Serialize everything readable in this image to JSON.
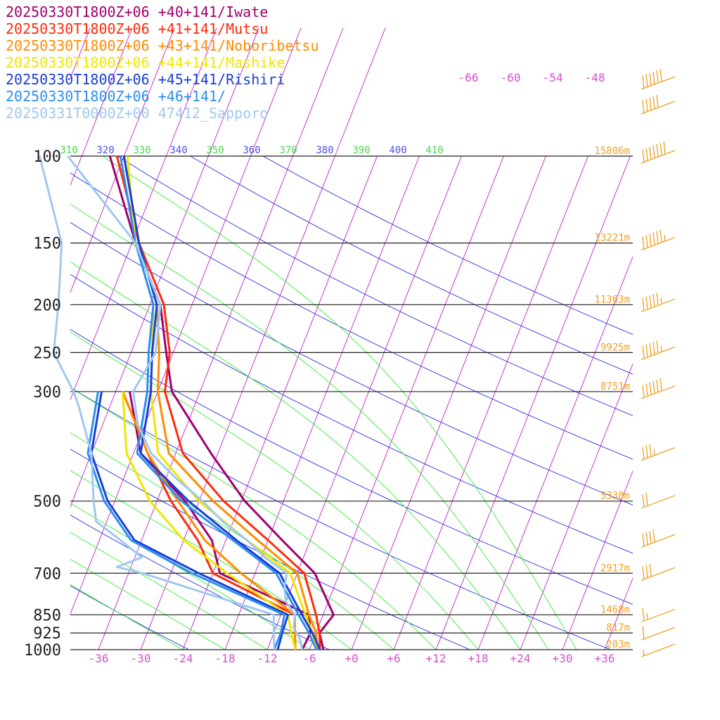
{
  "legend": [
    {
      "text": "20250330T1800Z+06 +40+141/Iwate",
      "color": "#a0006e"
    },
    {
      "text": "20250330T1800Z+06 +41+141/Mutsu",
      "color": "#ff2a0a"
    },
    {
      "text": "20250330T1800Z+06 +43+141/Noboribetsu",
      "color": "#ff8c00"
    },
    {
      "text": "20250330T1800Z+06 +44+141/Mashike",
      "color": "#f0e600"
    },
    {
      "text": "20250330T1800Z+06 +45+141/Rishiri",
      "color": "#1a3fd6"
    },
    {
      "text": "20250330T1800Z+06 +46+141/",
      "color": "#2a8ff0"
    },
    {
      "text": "20250331T0000Z+00 47412_Sapporo",
      "color": "#a0c8f0"
    }
  ],
  "chart_data": {
    "type": "line",
    "title": "",
    "xlabel": "",
    "ylabel": "",
    "pressure_levels": [
      {
        "p": 100,
        "label": "100",
        "height": "15806m"
      },
      {
        "p": 150,
        "label": "150",
        "height": "13221m"
      },
      {
        "p": 200,
        "label": "200",
        "height": "11363m"
      },
      {
        "p": 250,
        "label": "250",
        "height": "9925m"
      },
      {
        "p": 300,
        "label": "300",
        "height": "8751m"
      },
      {
        "p": 500,
        "label": "500",
        "height": "5338m"
      },
      {
        "p": 700,
        "label": "700",
        "height": "2917m"
      },
      {
        "p": 850,
        "label": "850",
        "height": "1468m"
      },
      {
        "p": 925,
        "label": "925",
        "height": "817m"
      },
      {
        "p": 1000,
        "label": "1000",
        "height": "203m"
      }
    ],
    "x_ticks": [
      "-36",
      "-30",
      "-24",
      "-18",
      "-12",
      "-6",
      "+0",
      "+6",
      "+12",
      "+18",
      "+24",
      "+30",
      "+36"
    ],
    "x_tick_values": [
      -36,
      -30,
      -24,
      -18,
      -12,
      -6,
      0,
      6,
      12,
      18,
      24,
      30,
      36
    ],
    "upper_temp_labels": [
      "-66",
      "-60",
      "-54",
      "-48"
    ],
    "theta_labels": [
      {
        "text": "310",
        "color": "#4ad84a"
      },
      {
        "text": "320",
        "color": "#5050e0"
      },
      {
        "text": "330",
        "color": "#4ad84a"
      },
      {
        "text": "340",
        "color": "#5050e0"
      },
      {
        "text": "350",
        "color": "#4ad84a"
      },
      {
        "text": "360",
        "color": "#5050e0"
      },
      {
        "text": "370",
        "color": "#4ad84a"
      },
      {
        "text": "380",
        "color": "#5050e0"
      },
      {
        "text": "390",
        "color": "#4ad84a"
      },
      {
        "text": "400",
        "color": "#5050e0"
      },
      {
        "text": "410",
        "color": "#4ad84a"
      }
    ],
    "xlim": [
      -40,
      40
    ],
    "plim": [
      100,
      1000
    ],
    "isotherm_color": "#cc33cc",
    "dry_adiabat_color": "#4040e0",
    "moist_adiabat_color": "#44ee44",
    "barb_color": "#f0a020",
    "series": [
      {
        "name": "20250330T1800Z+06 +40+141/Iwate",
        "color": "#a0006e",
        "temp": [
          [
            1000,
            -4.0
          ],
          [
            925,
            -5.5
          ],
          [
            850,
            -4.5
          ],
          [
            700,
            -9.5
          ],
          [
            600,
            -16.0
          ],
          [
            500,
            -23.5
          ],
          [
            400,
            -31.0
          ],
          [
            300,
            -40.0
          ],
          [
            250,
            -43.0
          ],
          [
            200,
            -46.5
          ],
          [
            150,
            -53.5
          ],
          [
            100,
            -62.0
          ]
        ],
        "dew": [
          [
            1000,
            -7.0
          ],
          [
            925,
            -6.8
          ],
          [
            850,
            -8.0
          ],
          [
            700,
            -23.0
          ],
          [
            600,
            -26.0
          ],
          [
            500,
            -32.0
          ],
          [
            400,
            -41.0
          ],
          [
            300,
            -46.0
          ]
        ]
      },
      {
        "name": "20250330T1800Z+06 +41+141/Mutsu",
        "color": "#ff2a0a",
        "temp": [
          [
            1000,
            -4.5
          ],
          [
            925,
            -5.5
          ],
          [
            850,
            -7.0
          ],
          [
            700,
            -11.0
          ],
          [
            600,
            -18.0
          ],
          [
            500,
            -26.5
          ],
          [
            400,
            -35.0
          ],
          [
            300,
            -41.0
          ],
          [
            250,
            -42.5
          ],
          [
            200,
            -46.0
          ],
          [
            150,
            -53.0
          ],
          [
            100,
            -61.0
          ]
        ],
        "dew": [
          [
            1000,
            -8.0
          ],
          [
            925,
            -9.0
          ],
          [
            850,
            -10.0
          ],
          [
            700,
            -24.0
          ],
          [
            600,
            -28.0
          ],
          [
            500,
            -34.0
          ],
          [
            400,
            -40.0
          ],
          [
            300,
            -47.0
          ]
        ]
      },
      {
        "name": "20250330T1800Z+06 +43+141/Noboribetsu",
        "color": "#ff8c00",
        "temp": [
          [
            1000,
            -4.8
          ],
          [
            925,
            -6.0
          ],
          [
            850,
            -8.0
          ],
          [
            700,
            -12.0
          ],
          [
            600,
            -19.5
          ],
          [
            500,
            -28.0
          ],
          [
            400,
            -37.0
          ],
          [
            300,
            -42.0
          ],
          [
            250,
            -44.0
          ],
          [
            200,
            -47.0
          ],
          [
            150,
            -53.0
          ],
          [
            100,
            -60.0
          ]
        ],
        "dew": [
          [
            1000,
            -8.0
          ],
          [
            925,
            -9.0
          ],
          [
            850,
            -10.0
          ],
          [
            700,
            -20.0
          ],
          [
            600,
            -27.0
          ],
          [
            500,
            -33.0
          ],
          [
            400,
            -40.0
          ],
          [
            300,
            -47.0
          ]
        ]
      },
      {
        "name": "20250330T1800Z+06 +44+141/Mashike",
        "color": "#f0e600",
        "temp": [
          [
            1000,
            -5.0
          ],
          [
            925,
            -6.5
          ],
          [
            850,
            -8.5
          ],
          [
            700,
            -13.0
          ],
          [
            600,
            -21.0
          ],
          [
            500,
            -30.0
          ],
          [
            400,
            -38.5
          ],
          [
            300,
            -43.0
          ],
          [
            250,
            -45.0
          ],
          [
            200,
            -47.5
          ],
          [
            150,
            -53.5
          ],
          [
            100,
            -59.5
          ]
        ],
        "dew": [
          [
            1000,
            -8.0
          ],
          [
            925,
            -9.5
          ],
          [
            850,
            -11.0
          ],
          [
            700,
            -22.0
          ],
          [
            600,
            -30.0
          ],
          [
            500,
            -37.0
          ],
          [
            400,
            -43.0
          ],
          [
            300,
            -47.0
          ]
        ]
      },
      {
        "name": "20250330T1800Z+06 +45+141/Rishiri",
        "color": "#1a3fd6",
        "temp": [
          [
            1000,
            -4.5
          ],
          [
            925,
            -6.5
          ],
          [
            850,
            -9.0
          ],
          [
            700,
            -14.5
          ],
          [
            600,
            -22.5
          ],
          [
            500,
            -31.5
          ],
          [
            400,
            -41.0
          ],
          [
            300,
            -43.0
          ],
          [
            250,
            -45.0
          ],
          [
            200,
            -47.0
          ],
          [
            150,
            -53.0
          ],
          [
            100,
            -60.0
          ]
        ],
        "dew": [
          [
            1000,
            -10.5
          ],
          [
            925,
            -10.8
          ],
          [
            850,
            -11.0
          ],
          [
            700,
            -26.0
          ],
          [
            600,
            -37.0
          ],
          [
            500,
            -43.0
          ],
          [
            400,
            -48.0
          ],
          [
            300,
            -50.0
          ]
        ]
      },
      {
        "name": "20250330T1800Z+06 +46+141/",
        "color": "#2a8ff0",
        "temp": [
          [
            1000,
            -5.0
          ],
          [
            925,
            -7.0
          ],
          [
            850,
            -9.5
          ],
          [
            700,
            -15.0
          ],
          [
            600,
            -23.0
          ],
          [
            500,
            -32.5
          ],
          [
            400,
            -41.5
          ],
          [
            300,
            -43.5
          ],
          [
            250,
            -45.5
          ],
          [
            200,
            -47.5
          ],
          [
            150,
            -53.5
          ],
          [
            100,
            -60.5
          ]
        ],
        "dew": [
          [
            1000,
            -11.0
          ],
          [
            925,
            -11.0
          ],
          [
            850,
            -11.5
          ],
          [
            700,
            -27.0
          ],
          [
            600,
            -37.5
          ],
          [
            500,
            -43.5
          ],
          [
            400,
            -48.5
          ],
          [
            300,
            -50.5
          ]
        ]
      },
      {
        "name": "20250331T0000Z+00 47412_Sapporo",
        "color": "#a0c8f0",
        "temp": [
          [
            1000,
            -7.0
          ],
          [
            950,
            -8.0
          ],
          [
            900,
            -9.5
          ],
          [
            850,
            -10.0
          ],
          [
            800,
            -12.0
          ],
          [
            750,
            -13.0
          ],
          [
            700,
            -13.5
          ],
          [
            650,
            -17.5
          ],
          [
            600,
            -21.0
          ],
          [
            550,
            -25.5
          ],
          [
            500,
            -29.5
          ],
          [
            450,
            -34.5
          ],
          [
            400,
            -39.5
          ],
          [
            350,
            -43.0
          ],
          [
            300,
            -45.5
          ],
          [
            250,
            -44.5
          ],
          [
            200,
            -46.5
          ],
          [
            150,
            -53.5
          ],
          [
            100,
            -68.0
          ]
        ],
        "dew": [
          [
            1000,
            -11.0
          ],
          [
            925,
            -12.0
          ],
          [
            850,
            -13.0
          ],
          [
            700,
            -34.0
          ],
          [
            680,
            -38.0
          ],
          [
            650,
            -35.0
          ],
          [
            600,
            -39.0
          ],
          [
            550,
            -43.5
          ],
          [
            500,
            -45.0
          ],
          [
            400,
            -48.0
          ],
          [
            320,
            -52.5
          ],
          [
            300,
            -54.0
          ],
          [
            250,
            -59.0
          ],
          [
            200,
            -61.0
          ],
          [
            150,
            -64.0
          ],
          [
            100,
            -72.0
          ]
        ]
      }
    ],
    "wind_barbs": [
      {
        "p": 70,
        "knots": 60
      },
      {
        "p": 80,
        "knots": 50
      },
      {
        "p": 100,
        "knots": 70
      },
      {
        "p": 150,
        "knots": 65
      },
      {
        "p": 200,
        "knots": 55
      },
      {
        "p": 250,
        "knots": 55
      },
      {
        "p": 300,
        "knots": 60
      },
      {
        "p": 400,
        "knots": 35
      },
      {
        "p": 500,
        "knots": 20
      },
      {
        "p": 600,
        "knots": 40
      },
      {
        "p": 700,
        "knots": 30
      },
      {
        "p": 850,
        "knots": 15
      },
      {
        "p": 925,
        "knots": 10
      },
      {
        "p": 1000,
        "knots": 5
      }
    ]
  }
}
